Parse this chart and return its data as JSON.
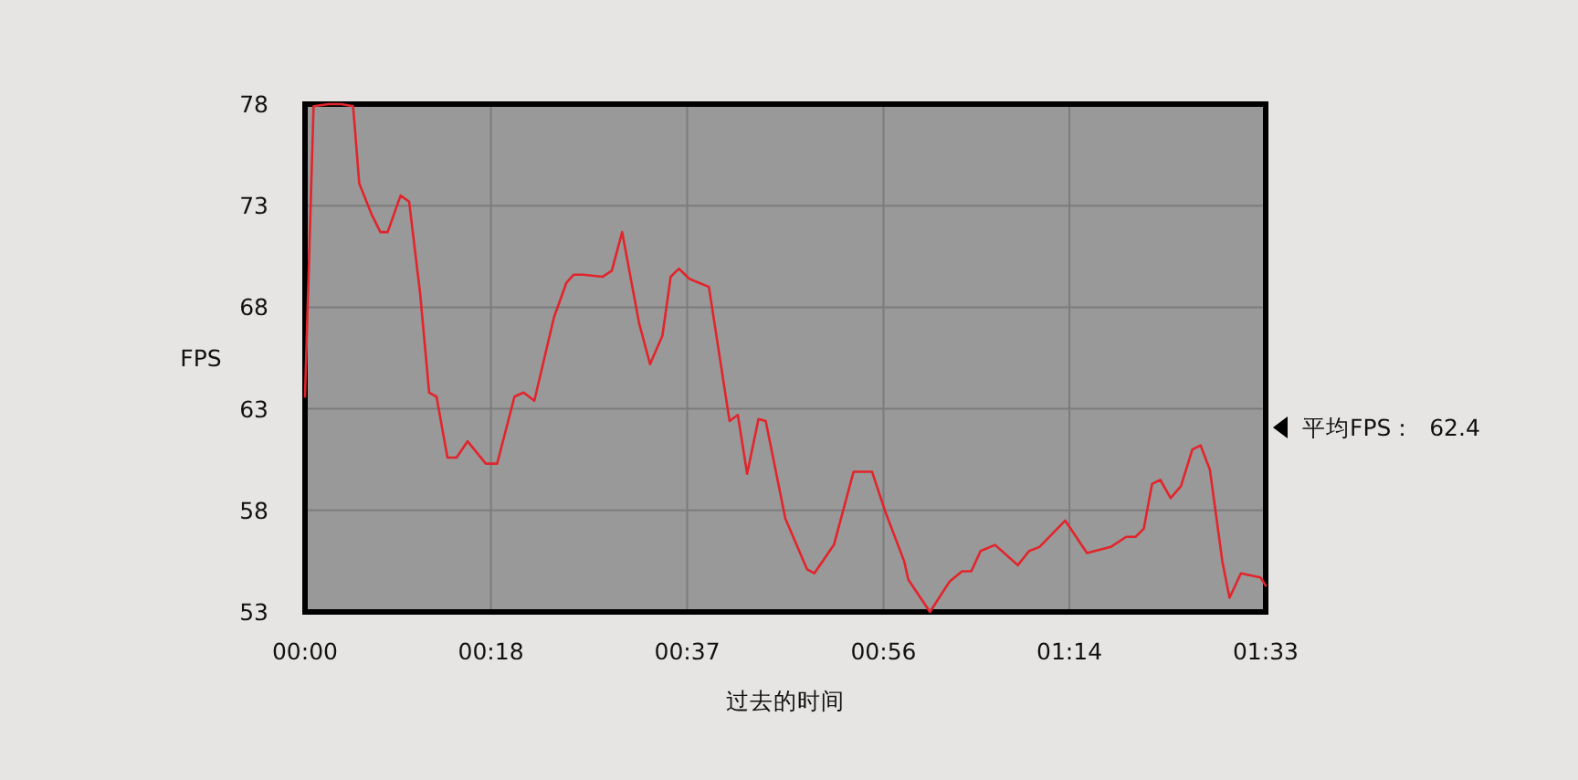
{
  "chart_data": {
    "type": "line",
    "xlabel": "过去的时间",
    "ylabel": "FPS",
    "color": "#e3242b",
    "x": [
      0,
      0.83,
      2.3,
      3.5,
      4.65,
      4.83,
      5.25,
      6.42,
      7.3,
      8.0,
      9.25,
      10.08,
      11.14,
      12.02,
      12.73,
      13.79,
      14.67,
      15.74,
      17.5,
      18.6,
      20.28,
      21.16,
      22.2,
      24.1,
      25.3,
      26.0,
      26.9,
      28.8,
      29.7,
      30.7,
      32.35,
      33.4,
      34.6,
      35.4,
      36.2,
      37.2,
      39.1,
      41.1,
      41.9,
      42.8,
      43.9,
      44.6,
      46.5,
      48.6,
      49.3,
      51.2,
      53.1,
      54.9,
      56.2,
      58.0,
      58.4,
      60.5,
      62.4,
      63.6,
      64.5,
      65.4,
      66.8,
      69.0,
      70.1,
      71.1,
      73.6,
      75.7,
      78.0,
      79.5,
      80.4,
      81.2,
      82.0,
      82.8,
      83.8,
      84.8,
      85.9,
      86.7,
      87.6,
      88.8,
      89.5,
      90.6,
      92.5,
      93
    ],
    "values": [
      63.6,
      77.9,
      78,
      78,
      77.9,
      76.8,
      74.1,
      72.6,
      71.7,
      71.7,
      73.5,
      73.2,
      68.7,
      63.8,
      63.6,
      60.6,
      60.6,
      61.4,
      60.3,
      60.3,
      63.6,
      63.8,
      63.4,
      67.5,
      69.2,
      69.6,
      69.6,
      69.5,
      69.8,
      71.7,
      67.2,
      65.2,
      66.6,
      69.5,
      69.9,
      69.4,
      69.0,
      62.4,
      62.7,
      59.8,
      62.5,
      62.4,
      57.6,
      55.1,
      54.9,
      56.3,
      59.9,
      59.9,
      57.9,
      55.5,
      54.6,
      53.0,
      54.5,
      55.0,
      55.0,
      56.0,
      56.3,
      55.3,
      56.0,
      56.2,
      57.5,
      55.9,
      56.2,
      56.7,
      56.7,
      57.1,
      59.3,
      59.5,
      58.6,
      59.2,
      61.0,
      61.2,
      60.0,
      55.5,
      53.7,
      54.9,
      54.7,
      54.3
    ],
    "xlim": [
      0,
      93
    ],
    "xticks": [
      {
        "value": 0,
        "label": "00:00"
      },
      {
        "value": 18,
        "label": "00:18"
      },
      {
        "value": 37,
        "label": "00:37"
      },
      {
        "value": 56,
        "label": "00:56"
      },
      {
        "value": 74,
        "label": "01:14"
      },
      {
        "value": 93,
        "label": "01:33"
      }
    ],
    "ylim": [
      53,
      78
    ],
    "yticks": [
      53,
      58,
      63,
      68,
      73,
      78
    ],
    "grid": true,
    "annotations": [
      "平均FPS：  62.4"
    ]
  }
}
